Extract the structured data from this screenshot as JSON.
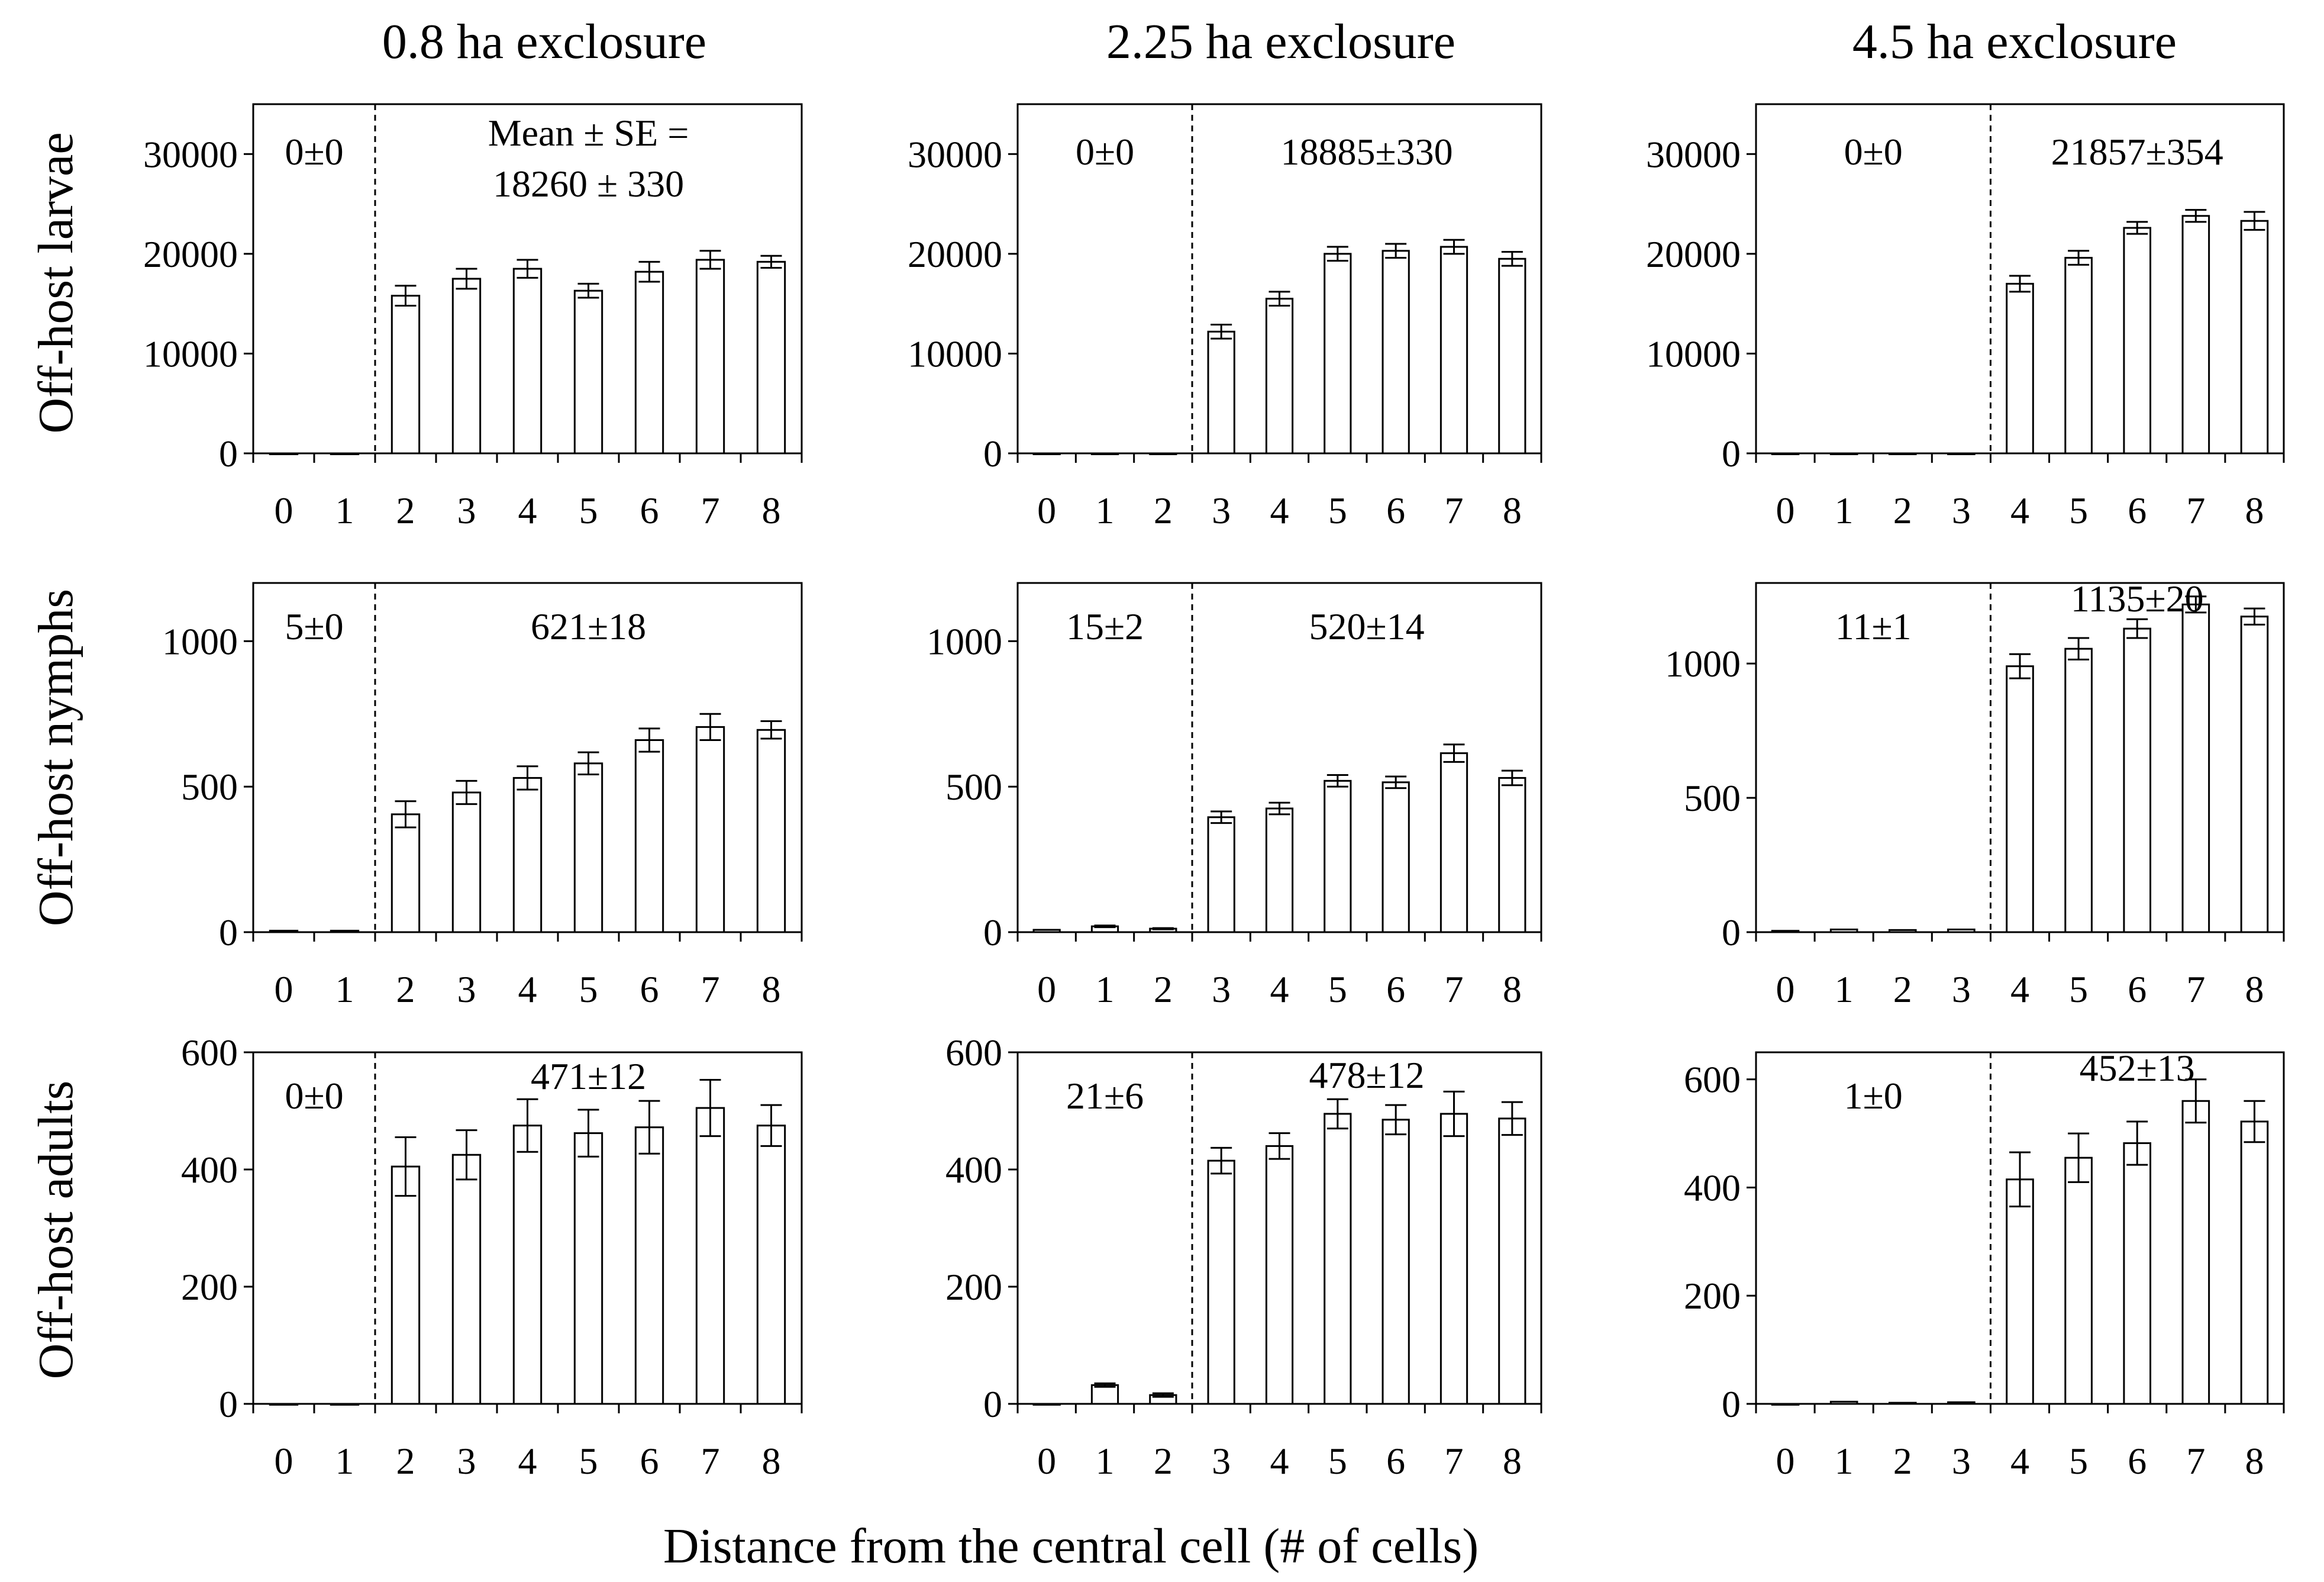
{
  "figure": {
    "columns": [
      "0.8 ha exclosure",
      "2.25 ha exclosure",
      "4.5 ha exclosure"
    ],
    "rows": [
      "Off-host larvae",
      "Off-host nymphs",
      "Off-host adults"
    ],
    "xlabel": "Distance from the central cell (# of cells)",
    "categories": [
      "0",
      "1",
      "2",
      "3",
      "4",
      "5",
      "6",
      "7",
      "8"
    ]
  },
  "chart_data": [
    {
      "type": "bar",
      "row": 0,
      "col": 0,
      "title": "0.8 ha exclosure",
      "ylabel": "Off-host larvae",
      "ylim": [
        0,
        35000
      ],
      "yticks": [
        0,
        10000,
        20000,
        30000
      ],
      "categories": [
        "0",
        "1",
        "2",
        "3",
        "4",
        "5",
        "6",
        "7",
        "8"
      ],
      "values": [
        0,
        0,
        15800,
        17500,
        18500,
        16300,
        18200,
        19400,
        19200
      ],
      "errors": [
        0,
        0,
        1000,
        1000,
        900,
        700,
        1000,
        900,
        600
      ],
      "divider_after": 1,
      "ann_left": "0±0",
      "ann_right": [
        "Mean ± SE =",
        "18260 ± 330"
      ]
    },
    {
      "type": "bar",
      "row": 0,
      "col": 1,
      "title": "2.25 ha exclosure",
      "ylabel": "Off-host larvae",
      "ylim": [
        0,
        35000
      ],
      "yticks": [
        0,
        10000,
        20000,
        30000
      ],
      "categories": [
        "0",
        "1",
        "2",
        "3",
        "4",
        "5",
        "6",
        "7",
        "8"
      ],
      "values": [
        0,
        0,
        0,
        12200,
        15500,
        20000,
        20300,
        20700,
        19500
      ],
      "errors": [
        0,
        0,
        0,
        700,
        700,
        700,
        700,
        700,
        700
      ],
      "divider_after": 2,
      "ann_left": "0±0",
      "ann_right": [
        "18885±330"
      ]
    },
    {
      "type": "bar",
      "row": 0,
      "col": 2,
      "title": "4.5 ha exclosure",
      "ylabel": "Off-host larvae",
      "ylim": [
        0,
        35000
      ],
      "yticks": [
        0,
        10000,
        20000,
        30000
      ],
      "categories": [
        "0",
        "1",
        "2",
        "3",
        "4",
        "5",
        "6",
        "7",
        "8"
      ],
      "values": [
        0,
        0,
        0,
        0,
        17000,
        19600,
        22600,
        23800,
        23300
      ],
      "errors": [
        0,
        0,
        0,
        0,
        800,
        700,
        600,
        600,
        900
      ],
      "divider_after": 3,
      "ann_left": "0±0",
      "ann_right": [
        "21857±354"
      ]
    },
    {
      "type": "bar",
      "row": 1,
      "col": 0,
      "title": "0.8 ha exclosure",
      "ylabel": "Off-host nymphs",
      "ylim": [
        0,
        1200
      ],
      "yticks": [
        0,
        500,
        1000
      ],
      "categories": [
        "0",
        "1",
        "2",
        "3",
        "4",
        "5",
        "6",
        "7",
        "8"
      ],
      "values": [
        5,
        5,
        405,
        480,
        530,
        580,
        660,
        705,
        695
      ],
      "errors": [
        0,
        0,
        45,
        40,
        40,
        38,
        40,
        45,
        30
      ],
      "divider_after": 1,
      "ann_left": "5±0",
      "ann_right": [
        "621±18"
      ]
    },
    {
      "type": "bar",
      "row": 1,
      "col": 1,
      "title": "2.25 ha exclosure",
      "ylabel": "Off-host nymphs",
      "ylim": [
        0,
        1200
      ],
      "yticks": [
        0,
        500,
        1000
      ],
      "categories": [
        "0",
        "1",
        "2",
        "3",
        "4",
        "5",
        "6",
        "7",
        "8"
      ],
      "values": [
        8,
        20,
        12,
        395,
        425,
        520,
        515,
        615,
        530
      ],
      "errors": [
        0,
        3,
        2,
        20,
        20,
        20,
        20,
        30,
        25
      ],
      "divider_after": 2,
      "ann_left": "15±2",
      "ann_right": [
        "520±14"
      ]
    },
    {
      "type": "bar",
      "row": 1,
      "col": 2,
      "title": "4.5 ha exclosure",
      "ylabel": "Off-host nymphs",
      "ylim": [
        0,
        1300
      ],
      "yticks": [
        0,
        500,
        1000
      ],
      "categories": [
        "0",
        "1",
        "2",
        "3",
        "4",
        "5",
        "6",
        "7",
        "8"
      ],
      "values": [
        5,
        10,
        8,
        10,
        990,
        1055,
        1130,
        1220,
        1175
      ],
      "errors": [
        0,
        0,
        0,
        0,
        45,
        40,
        35,
        30,
        30
      ],
      "divider_after": 3,
      "ann_left": "11±1",
      "ann_right": [
        "1135±20"
      ]
    },
    {
      "type": "bar",
      "row": 2,
      "col": 0,
      "title": "0.8 ha exclosure",
      "ylabel": "Off-host adults",
      "ylim": [
        0,
        600
      ],
      "yticks": [
        0,
        200,
        400,
        600
      ],
      "categories": [
        "0",
        "1",
        "2",
        "3",
        "4",
        "5",
        "6",
        "7",
        "8"
      ],
      "values": [
        0,
        0,
        405,
        425,
        475,
        462,
        472,
        505,
        475
      ],
      "errors": [
        0,
        0,
        50,
        42,
        45,
        40,
        45,
        48,
        35
      ],
      "divider_after": 1,
      "ann_left": "0±0",
      "ann_right": [
        "471±12"
      ]
    },
    {
      "type": "bar",
      "row": 2,
      "col": 1,
      "title": "2.25 ha exclosure",
      "ylabel": "Off-host adults",
      "ylim": [
        0,
        600
      ],
      "yticks": [
        0,
        200,
        400,
        600
      ],
      "categories": [
        "0",
        "1",
        "2",
        "3",
        "4",
        "5",
        "6",
        "7",
        "8"
      ],
      "values": [
        0,
        32,
        15,
        415,
        440,
        495,
        485,
        495,
        487
      ],
      "errors": [
        0,
        3,
        3,
        22,
        22,
        25,
        25,
        38,
        28
      ],
      "divider_after": 2,
      "ann_left": "21±6",
      "ann_right": [
        "478±12"
      ]
    },
    {
      "type": "bar",
      "row": 2,
      "col": 2,
      "title": "4.5 ha exclosure",
      "ylabel": "Off-host adults",
      "ylim": [
        0,
        650
      ],
      "yticks": [
        0,
        200,
        400,
        600
      ],
      "categories": [
        "0",
        "1",
        "2",
        "3",
        "4",
        "5",
        "6",
        "7",
        "8"
      ],
      "values": [
        0,
        4,
        2,
        3,
        415,
        455,
        482,
        560,
        522
      ],
      "errors": [
        0,
        0,
        0,
        0,
        50,
        45,
        40,
        40,
        38
      ],
      "divider_after": 3,
      "ann_left": "1±0",
      "ann_right": [
        "452±13"
      ]
    }
  ]
}
